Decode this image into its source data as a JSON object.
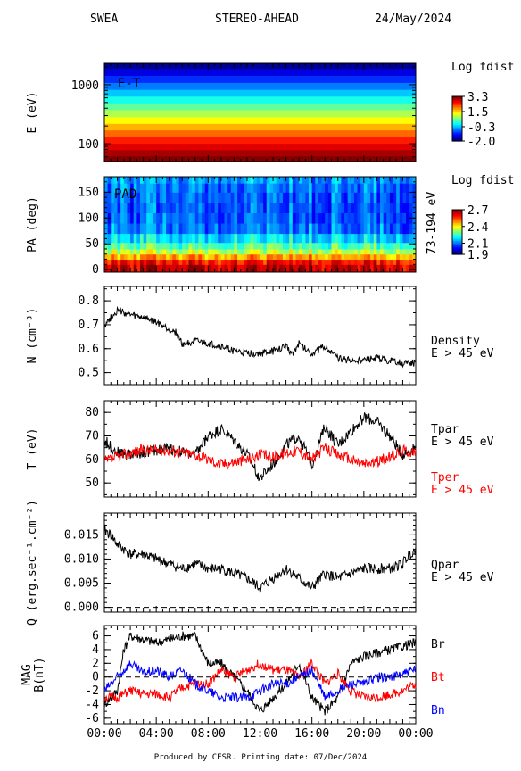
{
  "header": {
    "left": "SWEA",
    "center": "STEREO-AHEAD",
    "right": "24/May/2024"
  },
  "footer": {
    "text": "Produced by CESR.   Printing date: 07/Dec/2024"
  },
  "chart_data": [
    {
      "type": "heatmap",
      "title": "",
      "ylabel": "E (eV)",
      "annotation": "E-T",
      "yscale": "log",
      "ylim": [
        50,
        2300
      ],
      "ytick_labels": [
        "100",
        "1000"
      ],
      "xlabels": [
        "00:00",
        "04:00",
        "08:00",
        "12:00",
        "16:00",
        "20:00",
        "00:00"
      ],
      "colorbar": {
        "title": "Log fdist",
        "ticks": [
          "3.3",
          "1.5",
          "-0.3",
          "-2.0"
        ],
        "range": [
          -2.0,
          3.3
        ]
      },
      "energy_rows": [
        {
          "energy_ev": 55,
          "value": 3.3
        },
        {
          "energy_ev": 70,
          "value": 3.1
        },
        {
          "energy_ev": 90,
          "value": 2.8
        },
        {
          "energy_ev": 115,
          "value": 2.5
        },
        {
          "energy_ev": 150,
          "value": 2.1
        },
        {
          "energy_ev": 195,
          "value": 1.7
        },
        {
          "energy_ev": 250,
          "value": 1.3
        },
        {
          "energy_ev": 330,
          "value": 0.9
        },
        {
          "energy_ev": 430,
          "value": 0.5
        },
        {
          "energy_ev": 560,
          "value": 0.1
        },
        {
          "energy_ev": 730,
          "value": -0.3
        },
        {
          "energy_ev": 950,
          "value": -0.7
        },
        {
          "energy_ev": 1250,
          "value": -1.1
        },
        {
          "energy_ev": 1650,
          "value": -1.5
        },
        {
          "energy_ev": 2150,
          "value": -1.9
        }
      ]
    },
    {
      "type": "heatmap",
      "title": "",
      "ylabel": "PA (deg)",
      "annotation": "PAD",
      "right_label": "73-194 eV",
      "ylim": [
        -5,
        180
      ],
      "ytick_labels": [
        "0",
        "50",
        "100",
        "150"
      ],
      "xlabels": [
        "00:00",
        "04:00",
        "08:00",
        "12:00",
        "16:00",
        "20:00",
        "00:00"
      ],
      "colorbar": {
        "title": "Log fdist",
        "ticks": [
          "2.7",
          "2.4",
          "2.1",
          "1.9"
        ],
        "range": [
          1.9,
          2.7
        ]
      },
      "pitch_angle_profile": [
        {
          "pa_deg": 5,
          "value": 2.65
        },
        {
          "pa_deg": 15,
          "value": 2.6
        },
        {
          "pa_deg": 25,
          "value": 2.48
        },
        {
          "pa_deg": 35,
          "value": 2.36
        },
        {
          "pa_deg": 45,
          "value": 2.27
        },
        {
          "pa_deg": 60,
          "value": 2.18
        },
        {
          "pa_deg": 80,
          "value": 2.1
        },
        {
          "pa_deg": 100,
          "value": 2.08
        },
        {
          "pa_deg": 120,
          "value": 2.07
        },
        {
          "pa_deg": 140,
          "value": 2.08
        },
        {
          "pa_deg": 160,
          "value": 2.1
        },
        {
          "pa_deg": 175,
          "value": 2.13
        }
      ]
    },
    {
      "type": "line",
      "ylabel": "N (cm⁻³)",
      "ylim": [
        0.45,
        0.86
      ],
      "ytick_labels": [
        "0.5",
        "0.6",
        "0.7",
        "0.8"
      ],
      "xlabels": [
        "00:00",
        "04:00",
        "08:00",
        "12:00",
        "16:00",
        "20:00",
        "00:00"
      ],
      "legend": [
        {
          "text": "Density",
          "color": "#000000"
        },
        {
          "text": "E > 45 eV",
          "color": "#000000"
        }
      ],
      "series": [
        {
          "color": "#000000",
          "x_hours": [
            0,
            0.5,
            1,
            1.5,
            2,
            3,
            4,
            5,
            5.5,
            6,
            7,
            8,
            9,
            10,
            11,
            12,
            13,
            14,
            14.5,
            15,
            15.5,
            16,
            17,
            18,
            19,
            20,
            21,
            22,
            23,
            24
          ],
          "values": [
            0.7,
            0.73,
            0.76,
            0.75,
            0.74,
            0.73,
            0.71,
            0.68,
            0.67,
            0.62,
            0.63,
            0.62,
            0.61,
            0.59,
            0.58,
            0.58,
            0.59,
            0.61,
            0.58,
            0.62,
            0.6,
            0.58,
            0.61,
            0.56,
            0.55,
            0.55,
            0.56,
            0.55,
            0.54,
            0.54
          ]
        }
      ]
    },
    {
      "type": "line",
      "ylabel": "T (eV)",
      "ylim": [
        44,
        85
      ],
      "ytick_labels": [
        "50",
        "60",
        "70",
        "80"
      ],
      "xlabels": [
        "00:00",
        "04:00",
        "08:00",
        "12:00",
        "16:00",
        "20:00",
        "00:00"
      ],
      "legend": [
        {
          "text": "Tpar",
          "color": "#000000"
        },
        {
          "text": "E > 45 eV",
          "color": "#000000"
        },
        {
          "text": "Tper",
          "color": "#ff0000"
        },
        {
          "text": "E > 45 eV",
          "color": "#ff0000"
        }
      ],
      "series": [
        {
          "name": "Tpar",
          "color": "#000000",
          "x_hours": [
            0,
            1,
            2,
            3,
            4,
            5,
            6,
            7,
            8,
            9,
            10,
            11,
            12,
            13,
            14,
            15,
            16,
            17,
            18,
            19,
            20,
            21,
            22,
            23,
            24
          ],
          "values": [
            68,
            63,
            62,
            63,
            64,
            65,
            63,
            62,
            70,
            73,
            68,
            62,
            52,
            58,
            66,
            70,
            58,
            74,
            66,
            72,
            78,
            76,
            70,
            62,
            65
          ]
        },
        {
          "name": "Tper",
          "color": "#ff0000",
          "x_hours": [
            0,
            1,
            2,
            3,
            4,
            5,
            6,
            7,
            8,
            9,
            10,
            11,
            12,
            13,
            14,
            15,
            16,
            17,
            18,
            19,
            20,
            21,
            22,
            23,
            24
          ],
          "values": [
            59,
            61,
            63,
            64,
            64,
            64,
            63,
            62,
            60,
            58,
            59,
            60,
            62,
            61,
            63,
            64,
            60,
            65,
            62,
            60,
            58,
            59,
            61,
            64,
            63
          ]
        }
      ]
    },
    {
      "type": "line",
      "ylabel": "Q (erg.sec⁻¹.cm⁻²)",
      "ylim": [
        -0.001,
        0.0195
      ],
      "ytick_labels": [
        "0.000",
        "0.005",
        "0.010",
        "0.015"
      ],
      "xlabels": [
        "00:00",
        "04:00",
        "08:00",
        "12:00",
        "16:00",
        "20:00",
        "00:00"
      ],
      "legend": [
        {
          "text": "Qpar",
          "color": "#000000"
        },
        {
          "text": "E > 45 eV",
          "color": "#000000"
        }
      ],
      "series": [
        {
          "color": "#000000",
          "x_hours": [
            0,
            0.5,
            1,
            2,
            3,
            4,
            5,
            6,
            7,
            8,
            9,
            10,
            11,
            12,
            13,
            14,
            15,
            16,
            17,
            18,
            19,
            20,
            21,
            22,
            23,
            23.5,
            24
          ],
          "values": [
            0.016,
            0.015,
            0.013,
            0.011,
            0.011,
            0.01,
            0.009,
            0.008,
            0.009,
            0.008,
            0.008,
            0.007,
            0.006,
            0.004,
            0.006,
            0.008,
            0.006,
            0.004,
            0.007,
            0.006,
            0.007,
            0.008,
            0.008,
            0.008,
            0.009,
            0.011,
            0.012
          ]
        }
      ]
    },
    {
      "type": "line",
      "ylabel": "MAG B(nT)",
      "ylim": [
        -6.8,
        7.5
      ],
      "ytick_labels": [
        "6",
        "4",
        "2",
        "0",
        "-2",
        "-4",
        "-6"
      ],
      "xlabels": [
        "00:00",
        "04:00",
        "08:00",
        "12:00",
        "16:00",
        "20:00",
        "00:00"
      ],
      "legend": [
        {
          "text": "Br",
          "color": "#000000"
        },
        {
          "text": "Bt",
          "color": "#ff0000"
        },
        {
          "text": "Bn",
          "color": "#0000ff"
        }
      ],
      "series": [
        {
          "name": "Br",
          "color": "#000000",
          "x_hours": [
            0,
            1,
            1.5,
            2,
            3,
            4,
            5,
            6,
            7,
            8,
            9,
            10,
            11,
            12,
            13,
            14,
            15,
            16,
            17,
            18,
            19,
            20,
            21,
            22,
            23,
            24
          ],
          "values": [
            -4,
            -2,
            4,
            6,
            5.5,
            5,
            5.5,
            6,
            6,
            2,
            2,
            0,
            -2,
            -5,
            -3,
            -1,
            2,
            -3,
            -5,
            -3,
            2,
            3,
            3.5,
            4,
            4.5,
            5
          ]
        },
        {
          "name": "Bt",
          "color": "#ff0000",
          "x_hours": [
            0,
            1,
            2,
            3,
            4,
            5,
            6,
            7,
            8,
            9,
            10,
            11,
            12,
            13,
            14,
            15,
            16,
            17,
            18,
            19,
            20,
            21,
            22,
            23,
            24
          ],
          "values": [
            -3,
            -3,
            -2,
            -2.5,
            -2.5,
            -3,
            -1.5,
            -1,
            -1,
            1,
            0,
            1,
            2,
            1,
            1,
            0,
            2,
            -1,
            0.5,
            -2,
            -3,
            -3,
            -2.5,
            -2,
            -1
          ]
        },
        {
          "name": "Bn",
          "color": "#0000ff",
          "x_hours": [
            0,
            1,
            2,
            3,
            4,
            5,
            6,
            7,
            8,
            9,
            10,
            11,
            12,
            13,
            14,
            15,
            16,
            17,
            18,
            19,
            20,
            21,
            22,
            23,
            24
          ],
          "values": [
            -2,
            0,
            2,
            0.5,
            1,
            0,
            1,
            -1,
            -2,
            -3,
            -3,
            -3,
            -2,
            -1,
            -1,
            0,
            1,
            -3,
            -2,
            -1,
            -1,
            0,
            0,
            0.5,
            1
          ]
        }
      ]
    }
  ]
}
